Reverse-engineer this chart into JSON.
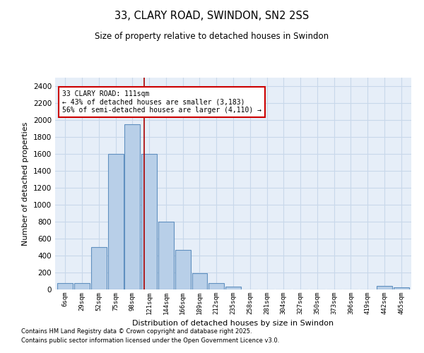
{
  "title1": "33, CLARY ROAD, SWINDON, SN2 2SS",
  "title2": "Size of property relative to detached houses in Swindon",
  "xlabel": "Distribution of detached houses by size in Swindon",
  "ylabel": "Number of detached properties",
  "categories": [
    "6sqm",
    "29sqm",
    "52sqm",
    "75sqm",
    "98sqm",
    "121sqm",
    "144sqm",
    "166sqm",
    "189sqm",
    "212sqm",
    "235sqm",
    "258sqm",
    "281sqm",
    "304sqm",
    "327sqm",
    "350sqm",
    "373sqm",
    "396sqm",
    "419sqm",
    "442sqm",
    "465sqm"
  ],
  "values": [
    75,
    75,
    500,
    1600,
    1950,
    1600,
    800,
    470,
    195,
    75,
    30,
    0,
    0,
    0,
    0,
    0,
    0,
    0,
    0,
    40,
    25
  ],
  "bar_color": "#b8cfe8",
  "bar_edge_color": "#6090c0",
  "vline_color": "#aa0000",
  "vline_x_idx": 5,
  "annotation_text": "33 CLARY ROAD: 111sqm\n← 43% of detached houses are smaller (3,183)\n56% of semi-detached houses are larger (4,110) →",
  "annotation_box_color": "white",
  "annotation_box_edge": "#cc0000",
  "ylim": [
    0,
    2500
  ],
  "yticks": [
    0,
    200,
    400,
    600,
    800,
    1000,
    1200,
    1400,
    1600,
    1800,
    2000,
    2200,
    2400
  ],
  "grid_color": "#c8d8ea",
  "bg_color": "#e6eef8",
  "footer1": "Contains HM Land Registry data © Crown copyright and database right 2025.",
  "footer2": "Contains public sector information licensed under the Open Government Licence v3.0."
}
